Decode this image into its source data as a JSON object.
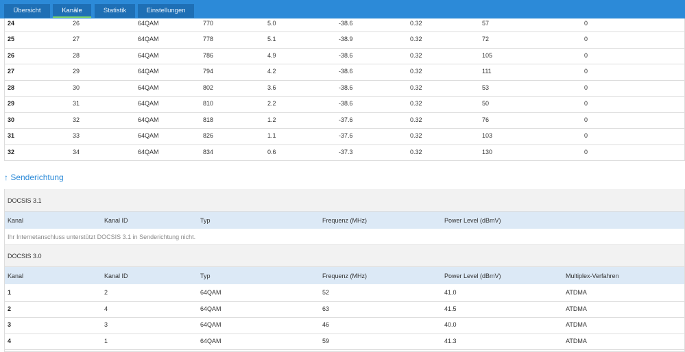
{
  "nav": {
    "tabs": [
      "Übersicht",
      "Kanäle",
      "Statistik",
      "Einstellungen"
    ]
  },
  "downstream": {
    "rows": [
      [
        "24",
        "26",
        "64QAM",
        "770",
        "5.0",
        "-38.6",
        "0.32",
        "57",
        "0"
      ],
      [
        "25",
        "27",
        "64QAM",
        "778",
        "5.1",
        "-38.9",
        "0.32",
        "72",
        "0"
      ],
      [
        "26",
        "28",
        "64QAM",
        "786",
        "4.9",
        "-38.6",
        "0.32",
        "105",
        "0"
      ],
      [
        "27",
        "29",
        "64QAM",
        "794",
        "4.2",
        "-38.6",
        "0.32",
        "111",
        "0"
      ],
      [
        "28",
        "30",
        "64QAM",
        "802",
        "3.6",
        "-38.6",
        "0.32",
        "53",
        "0"
      ],
      [
        "29",
        "31",
        "64QAM",
        "810",
        "2.2",
        "-38.6",
        "0.32",
        "50",
        "0"
      ],
      [
        "30",
        "32",
        "64QAM",
        "818",
        "1.2",
        "-37.6",
        "0.32",
        "76",
        "0"
      ],
      [
        "31",
        "33",
        "64QAM",
        "826",
        "1.1",
        "-37.6",
        "0.32",
        "103",
        "0"
      ],
      [
        "32",
        "34",
        "64QAM",
        "834",
        "0.6",
        "-37.3",
        "0.32",
        "130",
        "0"
      ]
    ]
  },
  "upstream": {
    "title": "↑ Senderichtung",
    "docsis31": {
      "title": "DOCSIS 3.1",
      "headers": [
        "Kanal",
        "Kanal ID",
        "Typ",
        "Frequenz (MHz)",
        "Power Level (dBmV)"
      ],
      "message": "Ihr Internetanschluss unterstützt DOCSIS 3.1 in Senderichtung nicht."
    },
    "docsis30": {
      "title": "DOCSIS 3.0",
      "headers": [
        "Kanal",
        "Kanal ID",
        "Typ",
        "Frequenz (MHz)",
        "Power Level (dBmV)",
        "Multiplex-Verfahren"
      ],
      "rows": [
        [
          "1",
          "2",
          "64QAM",
          "52",
          "41.0",
          "ATDMA"
        ],
        [
          "2",
          "4",
          "64QAM",
          "63",
          "41.5",
          "ATDMA"
        ],
        [
          "3",
          "3",
          "64QAM",
          "46",
          "40.0",
          "ATDMA"
        ],
        [
          "4",
          "1",
          "64QAM",
          "59",
          "41.3",
          "ATDMA"
        ]
      ]
    }
  }
}
